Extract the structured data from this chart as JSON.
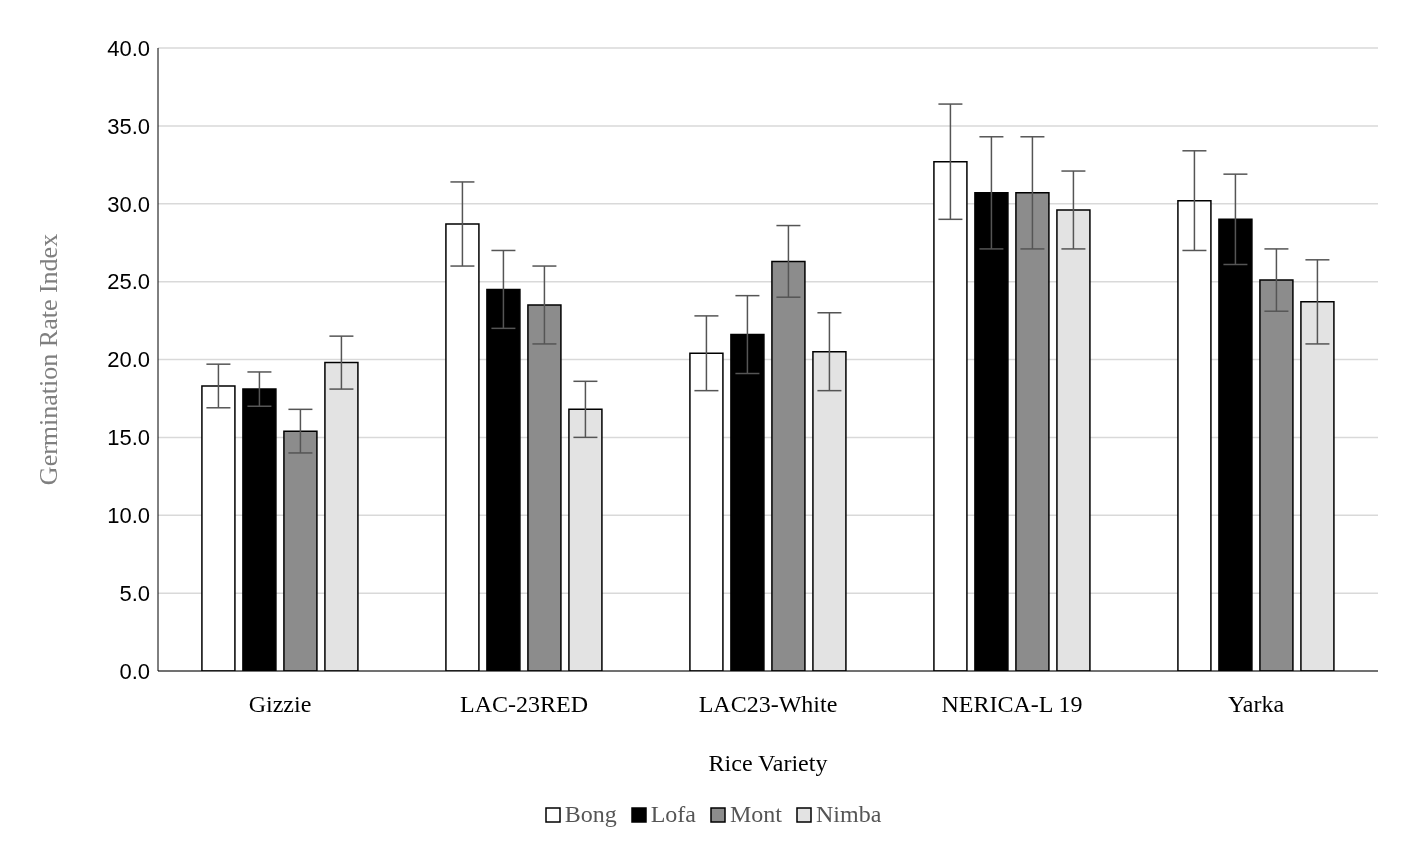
{
  "chart_data": {
    "type": "bar",
    "xlabel": "Rice Variety",
    "ylabel": "Germination Rate Index",
    "categories": [
      "Gizzie",
      "LAC-23RED",
      "LAC23-White",
      "NERICA-L 19",
      "Yarka"
    ],
    "series": [
      {
        "name": "Bong",
        "color": "#ffffff",
        "values": [
          18.3,
          28.7,
          20.4,
          32.7,
          30.2
        ],
        "errors": [
          1.4,
          2.7,
          2.4,
          3.7,
          3.2
        ]
      },
      {
        "name": "Lofa",
        "color": "#000000",
        "values": [
          18.1,
          24.5,
          21.6,
          30.7,
          29.0
        ],
        "errors": [
          1.1,
          2.5,
          2.5,
          3.6,
          2.9
        ]
      },
      {
        "name": "Mont",
        "color": "#8c8c8c",
        "values": [
          15.4,
          23.5,
          26.3,
          30.7,
          25.1
        ],
        "errors": [
          1.4,
          2.5,
          2.3,
          3.6,
          2.0
        ]
      },
      {
        "name": "Nimba",
        "color": "#e3e3e3",
        "values": [
          19.8,
          16.8,
          20.5,
          29.6,
          23.7
        ],
        "errors": [
          1.7,
          1.8,
          2.5,
          2.5,
          2.7
        ]
      }
    ],
    "ylim": [
      0,
      40
    ],
    "yticks": [
      {
        "value": 0,
        "label": "0.0"
      },
      {
        "value": 5,
        "label": "5.0"
      },
      {
        "value": 10,
        "label": "10.0"
      },
      {
        "value": 15,
        "label": "15.0"
      },
      {
        "value": 20,
        "label": "20.0"
      },
      {
        "value": 25,
        "label": "25.0"
      },
      {
        "value": 30,
        "label": "30.0"
      },
      {
        "value": 35,
        "label": "35.0"
      },
      {
        "value": 40,
        "label": "40.0"
      }
    ],
    "grid": "y",
    "legend": "bottom"
  }
}
